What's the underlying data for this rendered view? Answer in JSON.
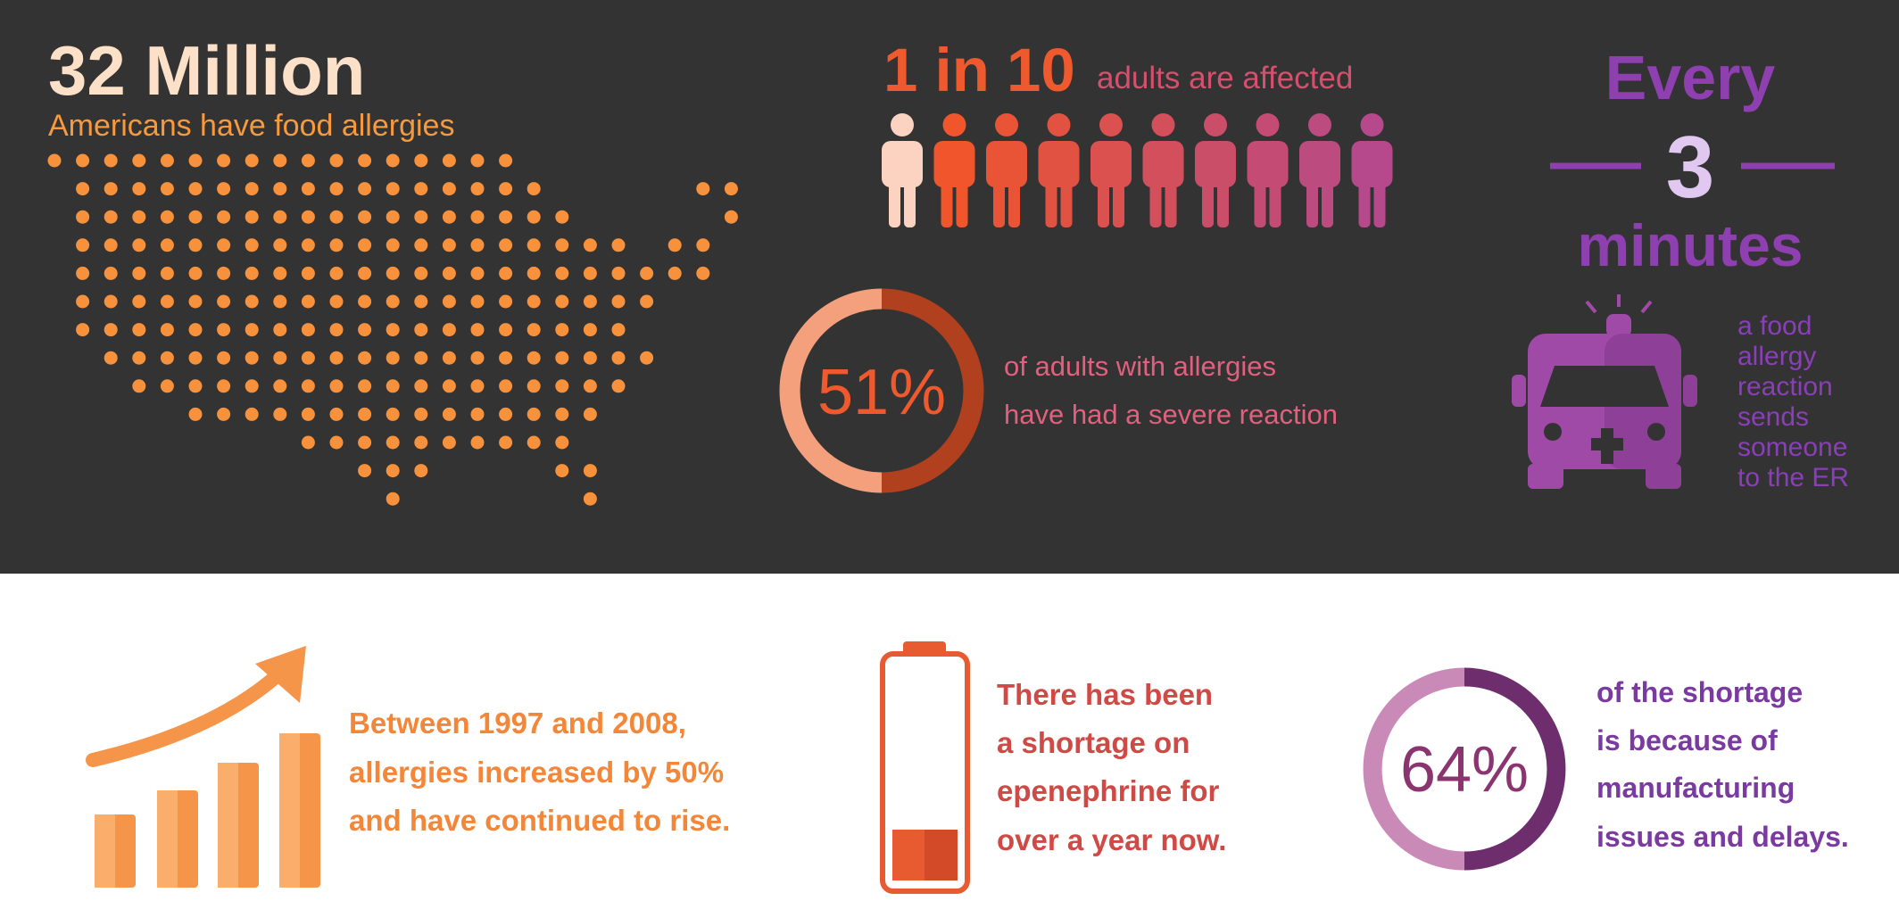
{
  "allergies": {
    "headline": "32 Million",
    "caption": "Americans have food allergies"
  },
  "adults": {
    "headline": "1 in 10",
    "caption": "adults are affected"
  },
  "er_visits": {
    "lead": "Every",
    "number": "3",
    "unit": "minutes",
    "caption_lines": [
      "a food",
      "allergy",
      "reaction",
      "sends",
      "someone",
      "to the ER"
    ]
  },
  "severe_reactions": {
    "percent": "51%",
    "caption_lines": [
      "of adults with allergies",
      "have had a severe reaction"
    ]
  },
  "increase": {
    "caption_lines": [
      "Between 1997 and 2008,",
      "allergies increased by 50%",
      "and have continued to rise."
    ]
  },
  "shortage": {
    "caption_lines": [
      "There has been",
      "a shortage on",
      "epenephrine for",
      "over a year now."
    ]
  },
  "shortage_cause": {
    "percent": "64%",
    "caption_lines": [
      "of the shortage",
      "is because of",
      "manufacturing",
      "issues and delays."
    ]
  }
}
